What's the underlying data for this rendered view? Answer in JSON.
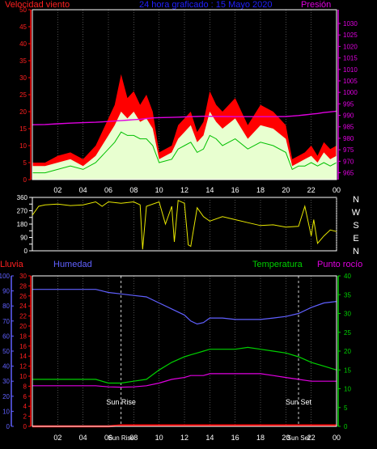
{
  "colors": {
    "background": "#000000",
    "wind": "#ff0000",
    "wind_avg": "#00c000",
    "wind_gust_fill": "#e8ffd0",
    "pressure": "#e000e0",
    "direction": "#e8e800",
    "rain": "#ff0000",
    "humidity": "#6060ff",
    "temperature": "#00d000",
    "dewpoint": "#e000e0",
    "axis_white": "#ffffff",
    "grid": "#808080",
    "title": "#2020ff",
    "sun_label": "#ffffff"
  },
  "top_panel": {
    "left_axis_label": "Velocidad viento",
    "title": "24 hora graficado : 15 Mayo 2020",
    "right_axis_label": "Presión"
  },
  "direction_panel": {
    "compass_labels": [
      "N",
      "W",
      "S",
      "E",
      "N"
    ]
  },
  "bottom_panel": {
    "labels": {
      "rain": "Lluvia",
      "humidity": "Humedad",
      "temperature": "Temperatura",
      "dewpoint": "Punto rocío"
    },
    "sunrise_label": "Sun Rise",
    "sunset_label": "Sun Set",
    "overlay_rise": "Sun Rise",
    "overlay_set": "Sun Set"
  },
  "x_ticks": [
    "02",
    "04",
    "06",
    "08",
    "10",
    "12",
    "14",
    "16",
    "18",
    "20",
    "22",
    "00"
  ],
  "chart_data": [
    {
      "type": "line",
      "name": "wind_and_pressure",
      "x_hours": [
        0,
        1,
        2,
        3,
        4,
        5,
        6,
        6.5,
        7,
        7.5,
        8,
        8.5,
        9,
        9.5,
        10,
        11,
        11.5,
        12,
        12.5,
        13,
        13.5,
        14,
        14.5,
        15,
        16,
        17,
        18,
        19,
        20,
        20.5,
        21,
        21.5,
        22,
        22.5,
        23,
        23.5,
        24
      ],
      "wind_gust": [
        5,
        5,
        7,
        8,
        6,
        10,
        18,
        22,
        31,
        24,
        26,
        22,
        25,
        20,
        8,
        10,
        16,
        18,
        20,
        14,
        17,
        26,
        22,
        20,
        24,
        16,
        22,
        20,
        16,
        6,
        7,
        8,
        10,
        7,
        11,
        9,
        10
      ],
      "wind_speed": [
        4,
        4,
        5,
        6,
        4,
        7,
        13,
        16,
        20,
        18,
        20,
        17,
        18,
        15,
        6,
        8,
        12,
        14,
        16,
        11,
        13,
        20,
        17,
        15,
        18,
        12,
        16,
        15,
        12,
        4,
        5,
        6,
        7,
        5,
        8,
        6,
        7
      ],
      "wind_avg": [
        2,
        2,
        3,
        4,
        3,
        5,
        9,
        11,
        14,
        13,
        13,
        12,
        12,
        10,
        5,
        6,
        9,
        10,
        11,
        8,
        9,
        13,
        12,
        10,
        12,
        9,
        11,
        10,
        8,
        3,
        4,
        4,
        5,
        4,
        5,
        4,
        5
      ],
      "pressure": [
        985.9,
        986.0,
        986.3,
        986.6,
        986.8,
        987.0,
        987.3,
        987.5,
        987.7,
        987.9,
        988.1,
        988.3,
        988.6,
        988.9,
        989.0,
        989.1,
        989.2,
        989.3,
        989.4,
        989.5,
        989.6,
        989.6,
        989.5,
        989.5,
        989.4,
        989.4,
        989.4,
        989.4,
        989.5,
        989.7,
        989.9,
        990.2,
        990.5,
        990.8,
        991.2,
        991.5,
        991.8
      ],
      "left_ylim": [
        0,
        50
      ],
      "right_ylim": [
        962,
        1036
      ],
      "left_ticks": [
        0,
        5,
        10,
        15,
        20,
        25,
        30,
        35,
        40,
        45,
        50
      ],
      "right_ticks": [
        965,
        970,
        975,
        980,
        985,
        990,
        995,
        1000,
        1005,
        1010,
        1015,
        1020,
        1025,
        1030
      ]
    },
    {
      "type": "line",
      "name": "wind_direction",
      "x_hours": [
        0,
        0.5,
        1,
        2,
        3,
        4,
        5,
        5.5,
        6,
        7,
        8,
        8.5,
        8.7,
        9,
        10,
        10.5,
        11,
        11.2,
        11.5,
        12,
        12.3,
        12.5,
        13,
        13.5,
        14,
        15,
        16,
        17,
        18,
        19,
        20,
        21,
        21.5,
        22,
        22.2,
        22.5,
        23,
        23.5,
        24
      ],
      "degrees": [
        240,
        300,
        310,
        315,
        305,
        310,
        330,
        300,
        330,
        320,
        330,
        310,
        10,
        300,
        330,
        180,
        300,
        60,
        340,
        320,
        40,
        30,
        290,
        230,
        200,
        230,
        210,
        190,
        170,
        175,
        160,
        165,
        300,
        100,
        210,
        50,
        100,
        140,
        130
      ],
      "yticks": [
        0,
        45,
        90,
        135,
        180,
        225,
        270,
        315,
        360
      ]
    },
    {
      "type": "line",
      "name": "rain_humidity_temp_dewpoint",
      "x_hours": [
        0,
        1,
        2,
        3,
        4,
        5,
        6,
        7,
        8,
        9,
        10,
        11,
        12,
        12.5,
        13,
        13.5,
        14,
        15,
        16,
        17,
        18,
        19,
        20,
        21,
        22,
        23,
        24
      ],
      "humidity": [
        91,
        91,
        91,
        91,
        91,
        91,
        89,
        88,
        87,
        86,
        82,
        78,
        74,
        70,
        68,
        69,
        72,
        72,
        71,
        71,
        71,
        72,
        73,
        75,
        79,
        82,
        83
      ],
      "temperature": [
        12.5,
        12.5,
        12.5,
        12.5,
        12.5,
        12.5,
        11.5,
        11.5,
        12,
        12.5,
        15,
        17,
        18.5,
        19,
        19.5,
        20,
        20.5,
        20.5,
        20.5,
        21,
        20.5,
        20,
        19.5,
        18.5,
        17,
        16,
        15
      ],
      "dewpoint": [
        10.8,
        10.8,
        10.8,
        10.8,
        10.8,
        10.8,
        10.5,
        10.4,
        10.5,
        10.8,
        11.5,
        12.5,
        13,
        13.5,
        13.5,
        13.5,
        14,
        14,
        14,
        14,
        14,
        13.5,
        13,
        12.5,
        12,
        12,
        12
      ],
      "rain": [
        0,
        0,
        0,
        0,
        0,
        0,
        0,
        0.2,
        0.2,
        0.2,
        0.2,
        0.2,
        0.2,
        0.2,
        0.2,
        0.2,
        0.2,
        0.2,
        0.2,
        0.2,
        0.2,
        0.2,
        0.2,
        0.2,
        0.2,
        0.2,
        0.2
      ],
      "rain_ylim": [
        0,
        30
      ],
      "rain_ticks": [
        0,
        2,
        4,
        6,
        8,
        10,
        12,
        14,
        16,
        18,
        20,
        22,
        24,
        26,
        28,
        30
      ],
      "humidity_ylim": [
        0,
        100
      ],
      "humidity_ticks": [
        0,
        10,
        20,
        30,
        40,
        50,
        60,
        70,
        80,
        90,
        100
      ],
      "temp_ylim": [
        0,
        40
      ],
      "temp_ticks": [
        0,
        5,
        10,
        15,
        20,
        25,
        30,
        35,
        40
      ],
      "sunrise_hour": 7.0,
      "sunset_hour": 21.0
    }
  ]
}
